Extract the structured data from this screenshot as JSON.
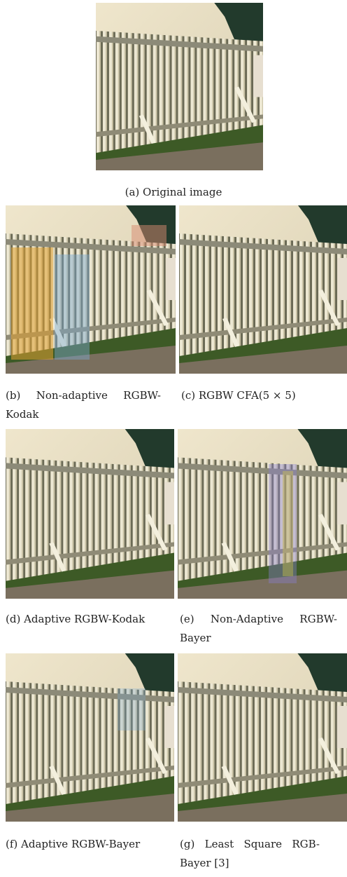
{
  "figure": {
    "panels": [
      {
        "caption": "(a) Original image"
      },
      {
        "caption": "(b) Non-adaptive RGBW-Kodak"
      },
      {
        "caption": "(c) RGBW CFA(5 × 5)"
      },
      {
        "caption": "(d) Adaptive RGBW-Kodak"
      },
      {
        "caption": "(e) Non-Adaptive RGBW-Bayer"
      },
      {
        "caption": "(f) Adaptive RGBW-Bayer"
      },
      {
        "caption": "(g) Least Square RGB-Bayer [3]"
      }
    ]
  }
}
